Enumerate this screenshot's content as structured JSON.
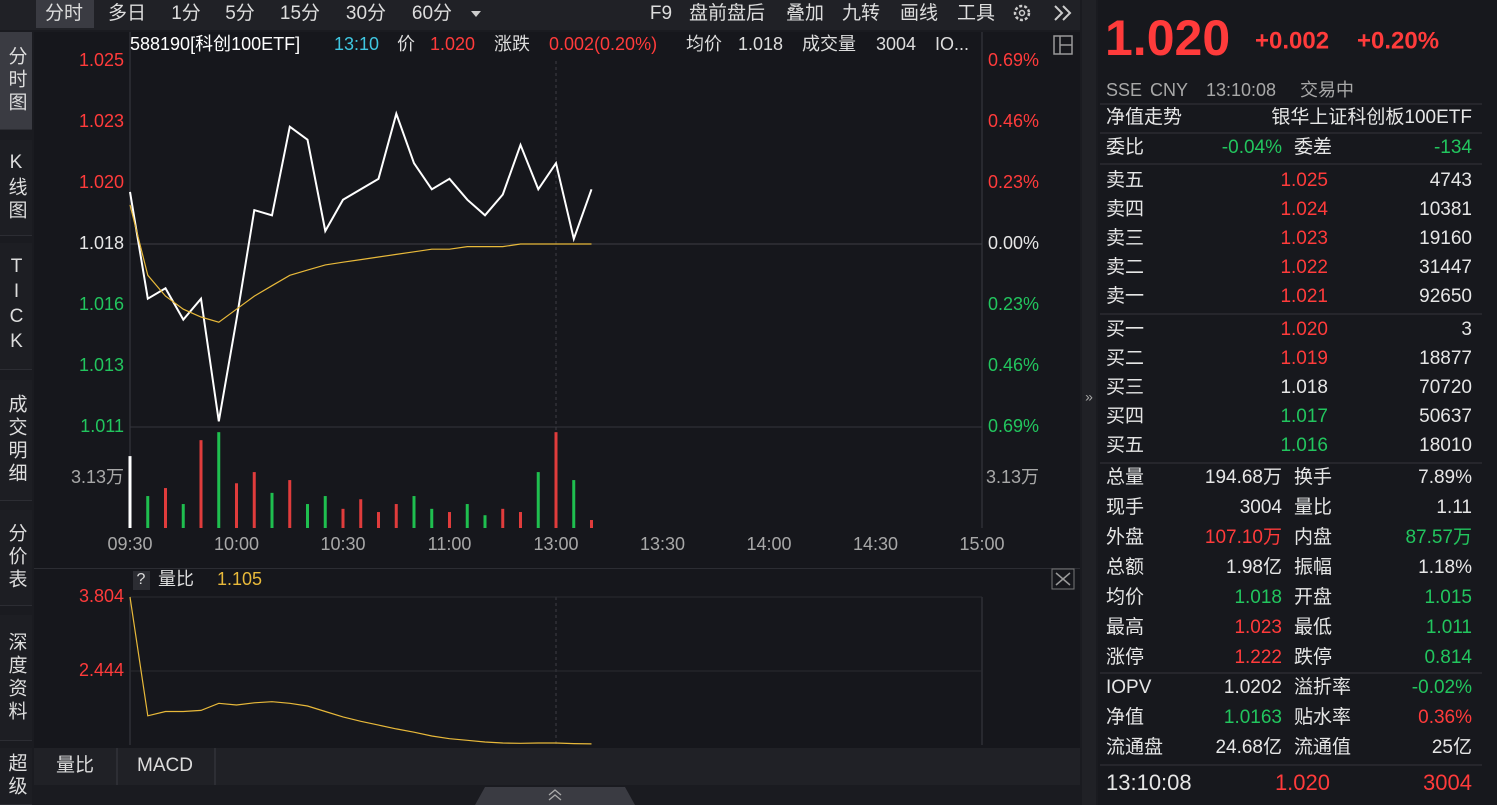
{
  "toolbar": {
    "tabs": [
      "分时",
      "多日",
      "1分",
      "5分",
      "15分",
      "30分",
      "60分"
    ],
    "tools": [
      "F9",
      "盘前盘后",
      "叠加",
      "九转",
      "画线",
      "工具"
    ]
  },
  "side_tabs": [
    "分时图",
    "K线图",
    "TICK",
    "成交明细",
    "分价表",
    "深度资料",
    "超级"
  ],
  "info_bar": {
    "code": "588190[科创100ETF]",
    "time": "13:10",
    "price_label": "价",
    "price": "1.020",
    "change_label": "涨跌",
    "change": "0.002(0.20%)",
    "avg_label": "均价",
    "avg": "1.018",
    "volume_label": "成交量",
    "volume": "3004",
    "more": "IO..."
  },
  "chart_data": [
    {
      "type": "line",
      "grid": true,
      "x": [
        0,
        5,
        10,
        15,
        20,
        25,
        30,
        35,
        40,
        45,
        50,
        55,
        60,
        65,
        70,
        75,
        80,
        85,
        90,
        95,
        100,
        105,
        110,
        115,
        120,
        125,
        130
      ],
      "xlim": [
        0,
        240
      ],
      "xticks": [
        {
          "value": 0,
          "label": "09:30"
        },
        {
          "value": 30,
          "label": "10:00"
        },
        {
          "value": 60,
          "label": "10:30"
        },
        {
          "value": 90,
          "label": "11:00"
        },
        {
          "value": 120,
          "label": "13:00"
        },
        {
          "value": 150,
          "label": "13:30"
        },
        {
          "value": 180,
          "label": "14:00"
        },
        {
          "value": 210,
          "label": "14:30"
        },
        {
          "value": 240,
          "label": "15:00"
        }
      ],
      "ylim": [
        1.01098,
        1.02502
      ],
      "yticks": [
        {
          "value": 1.02502,
          "label": "1.025"
        },
        {
          "value": 1.02268,
          "label": "1.023"
        },
        {
          "value": 1.02034,
          "label": "1.020"
        },
        {
          "value": 1.018,
          "label": "1.018"
        },
        {
          "value": 1.01566,
          "label": "1.016"
        },
        {
          "value": 1.01332,
          "label": "1.013"
        },
        {
          "value": 1.01098,
          "label": "1.011"
        }
      ],
      "y2lim": [
        -0.69,
        0.69
      ],
      "y2ticks": [
        {
          "value": 0.69,
          "label": "0.69%"
        },
        {
          "value": 0.46,
          "label": "0.46%"
        },
        {
          "value": 0.23,
          "label": "0.23%"
        },
        {
          "value": 0,
          "label": "0.00%"
        },
        {
          "value": -0.23,
          "label": "0.23%"
        },
        {
          "value": -0.46,
          "label": "0.46%"
        },
        {
          "value": -0.69,
          "label": "0.69%"
        }
      ],
      "series": [
        {
          "color": "#ffffff",
          "values": [
            1.02,
            1.0159,
            1.0163,
            1.0151,
            1.0159,
            1.0112,
            1.0151,
            1.0193,
            1.0191,
            1.0225,
            1.022,
            1.0185,
            1.0197,
            1.0201,
            1.0205,
            1.023,
            1.0211,
            1.0201,
            1.0205,
            1.0197,
            1.0191,
            1.0199,
            1.0218,
            1.0201,
            1.0211,
            1.0182,
            1.0201
          ]
        },
        {
          "color": "#e8b93a",
          "values": [
            1.0195,
            1.0168,
            1.016,
            1.0155,
            1.0152,
            1.015,
            1.0155,
            1.016,
            1.0164,
            1.0168,
            1.017,
            1.0172,
            1.0173,
            1.0174,
            1.0175,
            1.0176,
            1.0177,
            1.0178,
            1.0178,
            1.0179,
            1.0179,
            1.0179,
            1.018,
            1.018,
            1.018,
            1.018,
            1.018
          ]
        }
      ]
    },
    {
      "type": "bar",
      "x": [
        0,
        5,
        10,
        15,
        20,
        25,
        30,
        35,
        40,
        45,
        50,
        55,
        60,
        65,
        70,
        75,
        80,
        85,
        90,
        95,
        100,
        105,
        110,
        115,
        120,
        125,
        130
      ],
      "xlim": [
        0,
        240
      ],
      "values": [
        45000,
        20000,
        25000,
        15000,
        55000,
        60000,
        28000,
        35000,
        22000,
        30000,
        15000,
        20000,
        12000,
        18000,
        10000,
        15000,
        20000,
        12000,
        10000,
        15000,
        8000,
        12000,
        10000,
        35000,
        60000,
        30000,
        5000
      ],
      "colors": [
        "#ffffff",
        "#1fbf4f",
        "#e03c3c",
        "#1fbf4f",
        "#e03c3c",
        "#1fbf4f",
        "#e03c3c",
        "#e03c3c",
        "#1fbf4f",
        "#e03c3c",
        "#1fbf4f",
        "#1fbf4f",
        "#e03c3c",
        "#e03c3c",
        "#e03c3c",
        "#e03c3c",
        "#1fbf4f",
        "#1fbf4f",
        "#e03c3c",
        "#1fbf4f",
        "#1fbf4f",
        "#e03c3c",
        "#e03c3c",
        "#1fbf4f",
        "#e03c3c",
        "#1fbf4f",
        "#e03c3c"
      ],
      "ylim": [
        0,
        60100
      ],
      "yticks": [
        {
          "value": 31300,
          "label": "3.13万"
        }
      ]
    },
    {
      "type": "line",
      "x": [
        0,
        5,
        10,
        15,
        20,
        25,
        30,
        35,
        40,
        45,
        50,
        55,
        60,
        65,
        70,
        75,
        80,
        85,
        90,
        95,
        100,
        105,
        110,
        115,
        120,
        125,
        130
      ],
      "xlim": [
        0,
        240
      ],
      "ylim": [
        1.084,
        3.804
      ],
      "yticks": [
        3.804,
        2.444
      ],
      "series": [
        {
          "name": "量比",
          "color": "#e8b93a",
          "values": [
            3.804,
            1.62,
            1.7,
            1.7,
            1.72,
            1.85,
            1.82,
            1.86,
            1.88,
            1.85,
            1.8,
            1.7,
            1.6,
            1.52,
            1.45,
            1.38,
            1.32,
            1.25,
            1.2,
            1.17,
            1.14,
            1.12,
            1.115,
            1.12,
            1.12,
            1.11,
            1.105
          ]
        }
      ]
    }
  ],
  "indicator_help": "?",
  "bottom_tabs": [
    "量比",
    "MACD"
  ],
  "quote": {
    "price": "1.020",
    "change": "+0.002",
    "change_pct": "+0.20%",
    "status": [
      "SSE",
      "CNY",
      "13:10:08",
      "交易中"
    ],
    "nav_title": "净值走势",
    "fund_name": "银华上证科创板100ETF",
    "commission": [
      "委比",
      "-0.04%",
      "委差",
      "-134"
    ],
    "asks": [
      [
        "卖五",
        "1.025",
        "4743"
      ],
      [
        "卖四",
        "1.024",
        "10381"
      ],
      [
        "卖三",
        "1.023",
        "19160"
      ],
      [
        "卖二",
        "1.022",
        "31447"
      ],
      [
        "卖一",
        "1.021",
        "92650"
      ]
    ],
    "bids": [
      [
        "买一",
        "1.020",
        "3"
      ],
      [
        "买二",
        "1.019",
        "18877"
      ],
      [
        "买三",
        "1.018",
        "70720"
      ],
      [
        "买四",
        "1.017",
        "50637"
      ],
      [
        "买五",
        "1.016",
        "18010"
      ]
    ],
    "stats": [
      [
        "总量",
        "194.68万",
        "换手",
        "7.89%"
      ],
      [
        "现手",
        "3004",
        "量比",
        "1.11"
      ],
      [
        "外盘",
        "107.10万",
        "内盘",
        "87.57万"
      ],
      [
        "总额",
        "1.98亿",
        "振幅",
        "1.18%"
      ],
      [
        "均价",
        "1.018",
        "开盘",
        "1.015"
      ],
      [
        "最高",
        "1.023",
        "最低",
        "1.011"
      ],
      [
        "涨停",
        "1.222",
        "跌停",
        "0.814"
      ]
    ],
    "fund_stats": [
      [
        "IOPV",
        "1.0202",
        "溢折率",
        "-0.02%"
      ],
      [
        "净值",
        "1.0163",
        "贴水率",
        "0.36%"
      ],
      [
        "流通盘",
        "24.68亿",
        "流通值",
        "25亿"
      ]
    ],
    "last_trade": [
      "13:10:08",
      "1.020",
      "3004"
    ]
  }
}
